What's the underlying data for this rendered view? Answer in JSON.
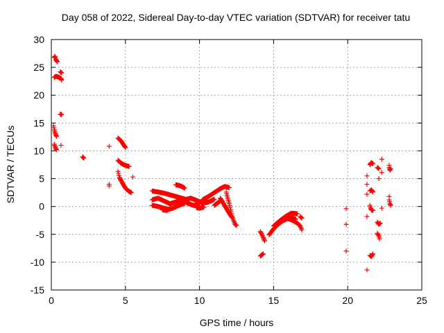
{
  "chart_data": {
    "type": "scatter",
    "title": "Day 058 of 2022, Sidereal Day-to-day VTEC variation (SDTVAR) for receiver tatu",
    "xlabel": "GPS time / hours",
    "ylabel": "SDTVAR / TECUs",
    "xlim": [
      0,
      25
    ],
    "ylim": [
      -15,
      30
    ],
    "xticks": [
      0,
      5,
      10,
      15,
      20,
      25
    ],
    "yticks": [
      -15,
      -10,
      -5,
      0,
      5,
      10,
      15,
      20,
      25,
      30
    ],
    "grid": true,
    "marker": "plus",
    "color": "#ff0000",
    "series": [
      {
        "name": "SDTVAR",
        "segments": [
          [
            [
              0.2,
              26.8
            ],
            [
              0.25,
              27.0
            ],
            [
              0.3,
              26.5
            ],
            [
              0.35,
              26.2
            ],
            [
              0.4,
              26.0
            ]
          ],
          [
            [
              0.2,
              23.2
            ],
            [
              0.3,
              23.4
            ],
            [
              0.45,
              23.3
            ],
            [
              0.65,
              23.0
            ],
            [
              0.7,
              22.7
            ]
          ],
          [
            [
              0.6,
              24.2
            ],
            [
              0.7,
              24.0
            ]
          ],
          [
            [
              0.6,
              16.6
            ],
            [
              0.7,
              16.5
            ]
          ],
          [
            [
              0.15,
              14.5
            ],
            [
              0.2,
              13.8
            ],
            [
              0.25,
              13.3
            ],
            [
              0.3,
              12.9
            ],
            [
              0.35,
              12.6
            ]
          ],
          [
            [
              0.2,
              11.2
            ],
            [
              0.25,
              10.8
            ],
            [
              0.3,
              10.4
            ],
            [
              0.35,
              10.2
            ]
          ],
          [
            [
              0.65,
              11.0
            ]
          ],
          [
            [
              2.1,
              8.9
            ],
            [
              2.2,
              8.7
            ]
          ],
          [
            [
              3.9,
              10.8
            ]
          ],
          [
            [
              3.9,
              4.0
            ],
            [
              3.9,
              3.7
            ]
          ],
          [
            [
              4.5,
              12.3
            ],
            [
              4.7,
              11.8
            ],
            [
              4.9,
              11.0
            ],
            [
              5.0,
              10.6
            ]
          ],
          [
            [
              4.5,
              8.3
            ],
            [
              4.7,
              7.8
            ],
            [
              4.9,
              7.5
            ],
            [
              5.1,
              7.3
            ],
            [
              5.25,
              7.2
            ]
          ],
          [
            [
              4.5,
              6.3
            ],
            [
              4.6,
              5.2
            ],
            [
              4.8,
              4.2
            ],
            [
              5.0,
              3.3
            ],
            [
              5.2,
              2.8
            ],
            [
              5.4,
              2.5
            ]
          ],
          [
            [
              5.5,
              5.3
            ]
          ],
          [
            [
              6.8,
              2.8
            ],
            [
              7.2,
              2.6
            ],
            [
              7.6,
              2.4
            ],
            [
              8.0,
              2.1
            ],
            [
              8.4,
              1.8
            ],
            [
              8.8,
              1.5
            ],
            [
              9.2,
              1.2
            ]
          ],
          [
            [
              6.8,
              1.2
            ],
            [
              7.2,
              1.5
            ],
            [
              7.6,
              1.0
            ],
            [
              8.0,
              0.5
            ],
            [
              8.4,
              0.8
            ],
            [
              8.8,
              1.2
            ],
            [
              9.2,
              0.6
            ],
            [
              9.6,
              0.2
            ],
            [
              10.0,
              0.5
            ]
          ],
          [
            [
              6.8,
              0.2
            ],
            [
              7.2,
              0.0
            ],
            [
              7.6,
              -0.3
            ],
            [
              7.9,
              -0.5
            ],
            [
              8.2,
              -0.3
            ],
            [
              8.6,
              0.2
            ],
            [
              9.0,
              0.6
            ]
          ],
          [
            [
              7.5,
              -0.6
            ],
            [
              7.8,
              -0.7
            ],
            [
              8.0,
              -0.4
            ]
          ],
          [
            [
              8.4,
              3.9
            ],
            [
              8.6,
              3.8
            ],
            [
              8.8,
              3.6
            ],
            [
              9.0,
              3.3
            ]
          ],
          [
            [
              9.0,
              1.2
            ],
            [
              9.4,
              1.5
            ],
            [
              9.8,
              1.1
            ],
            [
              10.2,
              0.6
            ],
            [
              10.6,
              0.8
            ],
            [
              11.0,
              1.3
            ]
          ],
          [
            [
              9.8,
              -0.2
            ],
            [
              10.0,
              -0.3
            ],
            [
              10.3,
              -0.1
            ]
          ],
          [
            [
              10.2,
              1.2
            ],
            [
              10.6,
              1.8
            ],
            [
              11.0,
              2.5
            ],
            [
              11.4,
              3.2
            ],
            [
              11.7,
              3.6
            ],
            [
              12.0,
              3.4
            ]
          ],
          [
            [
              11.8,
              2.6
            ],
            [
              12.0,
              0.5
            ],
            [
              12.1,
              -0.6
            ],
            [
              12.2,
              -1.7
            ],
            [
              12.3,
              -2.5
            ],
            [
              12.4,
              -3.2
            ],
            [
              12.5,
              -3.4
            ]
          ],
          [
            [
              11.4,
              1.5
            ],
            [
              11.6,
              0.6
            ],
            [
              11.8,
              -0.3
            ],
            [
              12.0,
              -1.2
            ],
            [
              12.2,
              -2.0
            ]
          ],
          [
            [
              11.0,
              0.2
            ],
            [
              11.2,
              0.6
            ],
            [
              11.4,
              1.0
            ]
          ],
          [
            [
              14.1,
              -4.5
            ],
            [
              14.2,
              -5.0
            ],
            [
              14.3,
              -5.6
            ],
            [
              14.4,
              -6.2
            ]
          ],
          [
            [
              14.1,
              -8.9
            ],
            [
              14.2,
              -8.7
            ],
            [
              14.3,
              -8.5
            ]
          ],
          [
            [
              14.7,
              -5.1
            ],
            [
              15.0,
              -4.0
            ],
            [
              15.3,
              -3.2
            ],
            [
              15.6,
              -2.6
            ],
            [
              15.9,
              -2.2
            ],
            [
              16.2,
              -2.0
            ],
            [
              16.5,
              -2.3
            ]
          ],
          [
            [
              15.0,
              -3.5
            ],
            [
              15.4,
              -2.6
            ],
            [
              15.8,
              -1.8
            ],
            [
              16.2,
              -1.2
            ],
            [
              16.6,
              -1.3
            ]
          ],
          [
            [
              16.0,
              -2.2
            ],
            [
              16.3,
              -2.5
            ],
            [
              16.6,
              -3.0
            ],
            [
              16.8,
              -3.5
            ],
            [
              16.9,
              -4.2
            ]
          ],
          [
            [
              16.8,
              -1.8
            ],
            [
              16.9,
              -2.1
            ]
          ],
          [
            [
              19.9,
              -0.4
            ]
          ],
          [
            [
              19.9,
              -3.2
            ]
          ],
          [
            [
              19.9,
              -8.0
            ]
          ],
          [
            [
              21.3,
              5.5
            ],
            [
              21.3,
              4.0
            ],
            [
              21.3,
              2.2
            ],
            [
              21.3,
              -1.8
            ],
            [
              21.3,
              -11.4
            ]
          ],
          [
            [
              21.5,
              7.5
            ],
            [
              21.55,
              7.7
            ],
            [
              21.6,
              7.9
            ],
            [
              21.7,
              7.7
            ]
          ],
          [
            [
              21.5,
              2.8
            ],
            [
              21.6,
              3.0
            ],
            [
              21.7,
              2.6
            ]
          ],
          [
            [
              21.5,
              0.2
            ],
            [
              21.55,
              -0.3
            ],
            [
              21.6,
              -0.6
            ],
            [
              21.7,
              -0.7
            ]
          ],
          [
            [
              21.5,
              -8.8
            ],
            [
              21.6,
              -9.0
            ],
            [
              21.7,
              -8.5
            ]
          ],
          [
            [
              22.0,
              7.0
            ],
            [
              22.1,
              6.8
            ],
            [
              22.1,
              5.0
            ]
          ],
          [
            [
              22.0,
              -2.8
            ],
            [
              22.1,
              -3.2
            ],
            [
              22.2,
              -3.0
            ]
          ],
          [
            [
              22.0,
              -4.8
            ],
            [
              22.1,
              -5.3
            ],
            [
              22.15,
              -5.8
            ]
          ],
          [
            [
              22.3,
              8.5
            ],
            [
              22.3,
              6.1
            ],
            [
              22.3,
              -0.3
            ]
          ],
          [
            [
              22.8,
              7.4
            ],
            [
              22.8,
              7.0
            ],
            [
              22.85,
              6.5
            ],
            [
              22.9,
              6.8
            ]
          ],
          [
            [
              22.8,
              1.8
            ],
            [
              22.8,
              1.2
            ],
            [
              22.85,
              0.5
            ],
            [
              22.9,
              0.2
            ]
          ]
        ]
      }
    ]
  }
}
